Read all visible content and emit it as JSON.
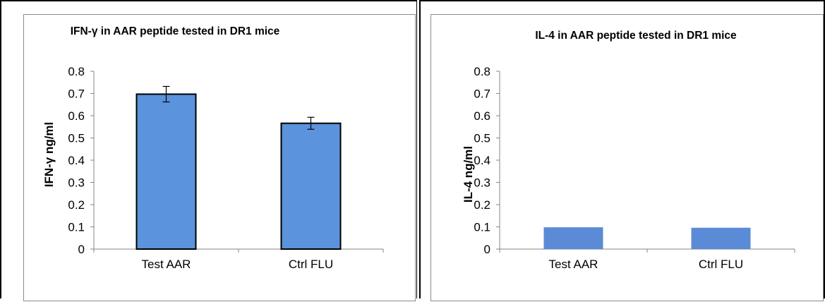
{
  "chart_data": [
    {
      "type": "bar",
      "title": "IFN-γ in AAR peptide tested in DR1 mice",
      "ylabel": "IFN-γ ng/ml",
      "xlabel": "",
      "categories": [
        "Test AAR",
        "Ctrl FLU"
      ],
      "values": [
        0.697,
        0.566
      ],
      "error": [
        0.035,
        0.027
      ],
      "ylim": [
        0,
        0.8
      ],
      "yticks": [
        "0",
        "0.1",
        "0.2",
        "0.3",
        "0.4",
        "0.5",
        "0.6",
        "0.7",
        "0.8"
      ],
      "bar_color": "#5b93dc",
      "bar_outline": "#000000",
      "grid": false,
      "legend": "none"
    },
    {
      "type": "bar",
      "title": "IL-4 in AAR peptide tested in DR1 mice",
      "ylabel": "IL-4 ng/ml",
      "xlabel": "",
      "categories": [
        "Test AAR",
        "Ctrl FLU"
      ],
      "values": [
        0.098,
        0.096
      ],
      "ylim": [
        0,
        0.8
      ],
      "yticks": [
        "0",
        "0.1",
        "0.2",
        "0.3",
        "0.4",
        "0.5",
        "0.6",
        "0.7",
        "0.8"
      ],
      "bar_color": "#5b8bd6",
      "grid": false,
      "legend": "none"
    }
  ]
}
